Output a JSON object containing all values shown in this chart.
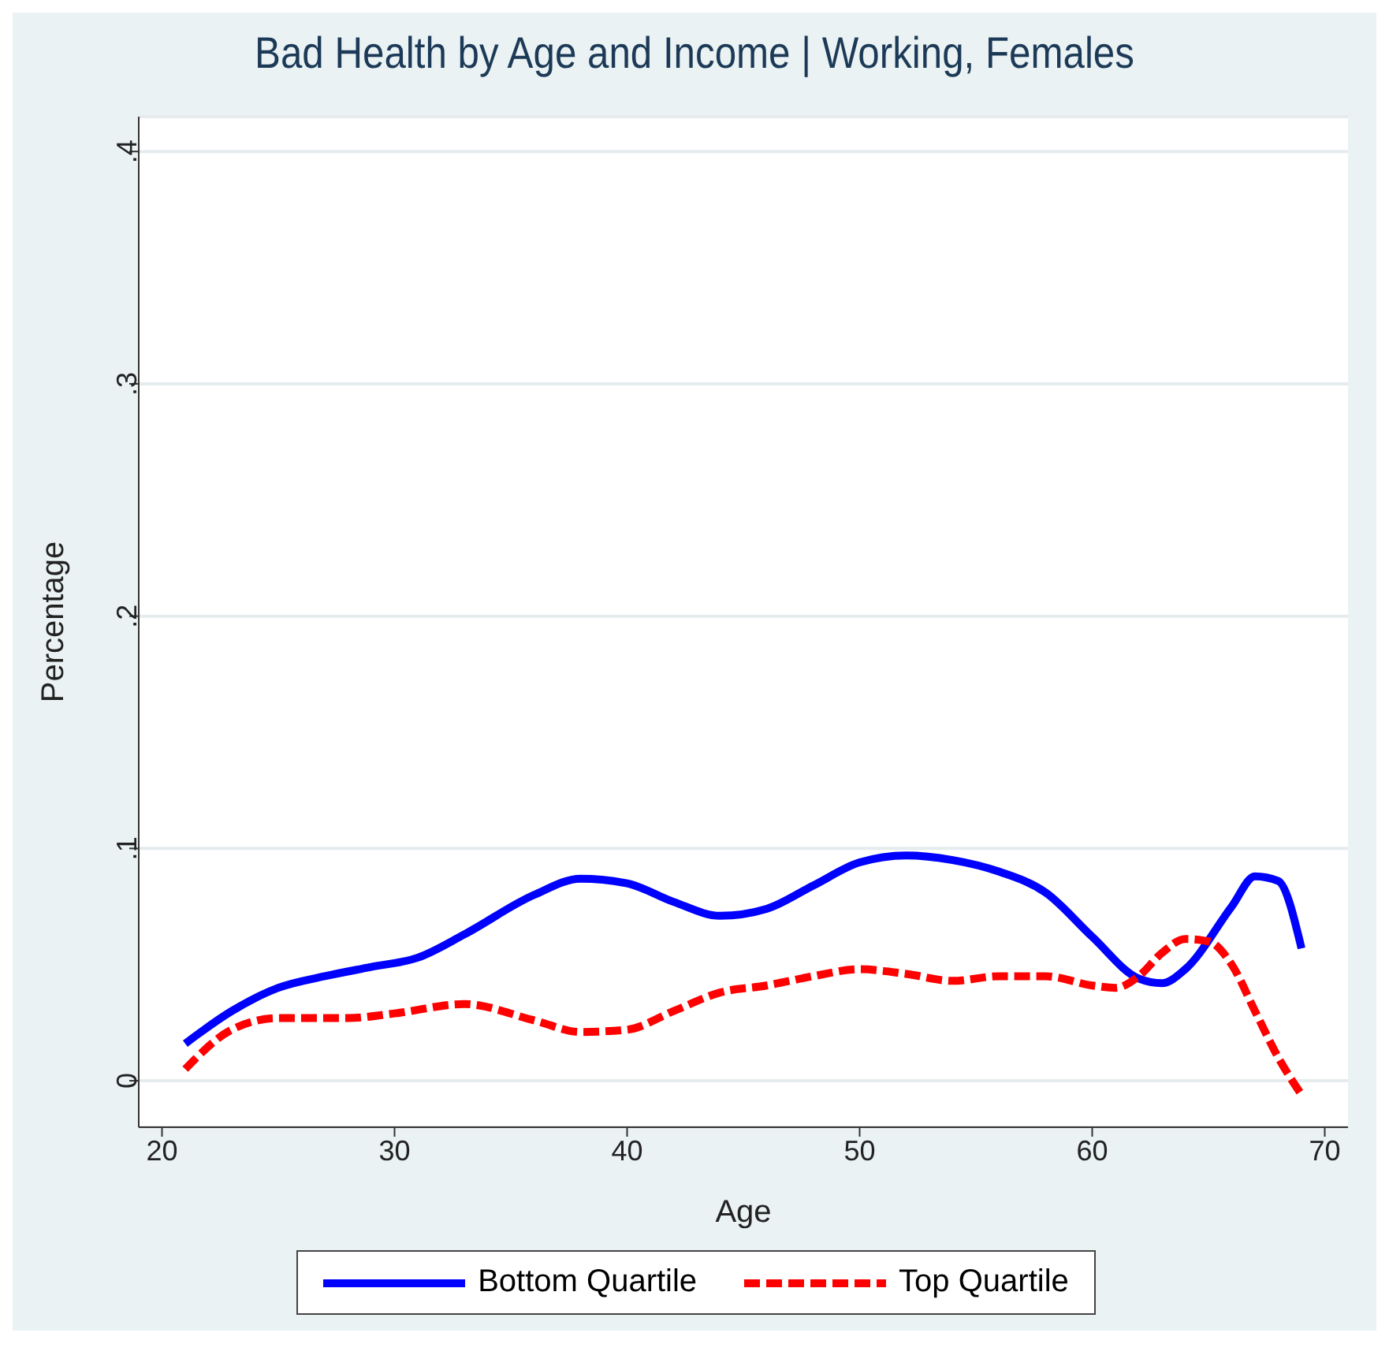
{
  "chart_data": {
    "type": "line",
    "title": "Bad Health by Age and Income | Working, Females",
    "xlabel": "Age",
    "ylabel": "Percentage",
    "xlim": [
      19,
      71
    ],
    "xticks": [
      20,
      30,
      40,
      50,
      60,
      70
    ],
    "ylim": [
      -0.02,
      0.415
    ],
    "yticks": [
      {
        "value": 0,
        "label": "0"
      },
      {
        "value": 0.1,
        "label": ".1"
      },
      {
        "value": 0.2,
        "label": ".2"
      },
      {
        "value": 0.3,
        "label": ".3"
      },
      {
        "value": 0.4,
        "label": ".4"
      }
    ],
    "grid": "y",
    "legend": "bottom",
    "marker": "none",
    "series": [
      {
        "name": "Bottom Quartile",
        "color": "#0000ff",
        "line_style": "solid",
        "x": [
          21,
          23,
          25,
          27,
          29,
          31,
          33,
          36,
          38,
          40,
          42,
          44,
          46,
          48,
          50,
          52,
          54,
          56,
          58,
          60,
          62,
          63,
          64,
          66,
          67,
          68,
          69
        ],
        "values": [
          0.016,
          0.03,
          0.04,
          0.045,
          0.049,
          0.053,
          0.063,
          0.08,
          0.087,
          0.085,
          0.077,
          0.071,
          0.074,
          0.084,
          0.094,
          0.097,
          0.095,
          0.09,
          0.081,
          0.062,
          0.044,
          0.042,
          0.048,
          0.075,
          0.088,
          0.086,
          0.057
        ]
      },
      {
        "name": "Top Quartile",
        "color": "#ff0000",
        "line_style": "dashed",
        "x": [
          21,
          23,
          25,
          28,
          30,
          33,
          36,
          38,
          40,
          42,
          44,
          46,
          48,
          50,
          52,
          54,
          56,
          58,
          60,
          61,
          62,
          63,
          64,
          65,
          66,
          67,
          68,
          69
        ],
        "values": [
          0.005,
          0.022,
          0.027,
          0.027,
          0.029,
          0.033,
          0.026,
          0.021,
          0.022,
          0.03,
          0.038,
          0.041,
          0.045,
          0.048,
          0.046,
          0.043,
          0.045,
          0.045,
          0.041,
          0.04,
          0.045,
          0.055,
          0.061,
          0.06,
          0.05,
          0.03,
          0.01,
          -0.006
        ]
      }
    ]
  }
}
